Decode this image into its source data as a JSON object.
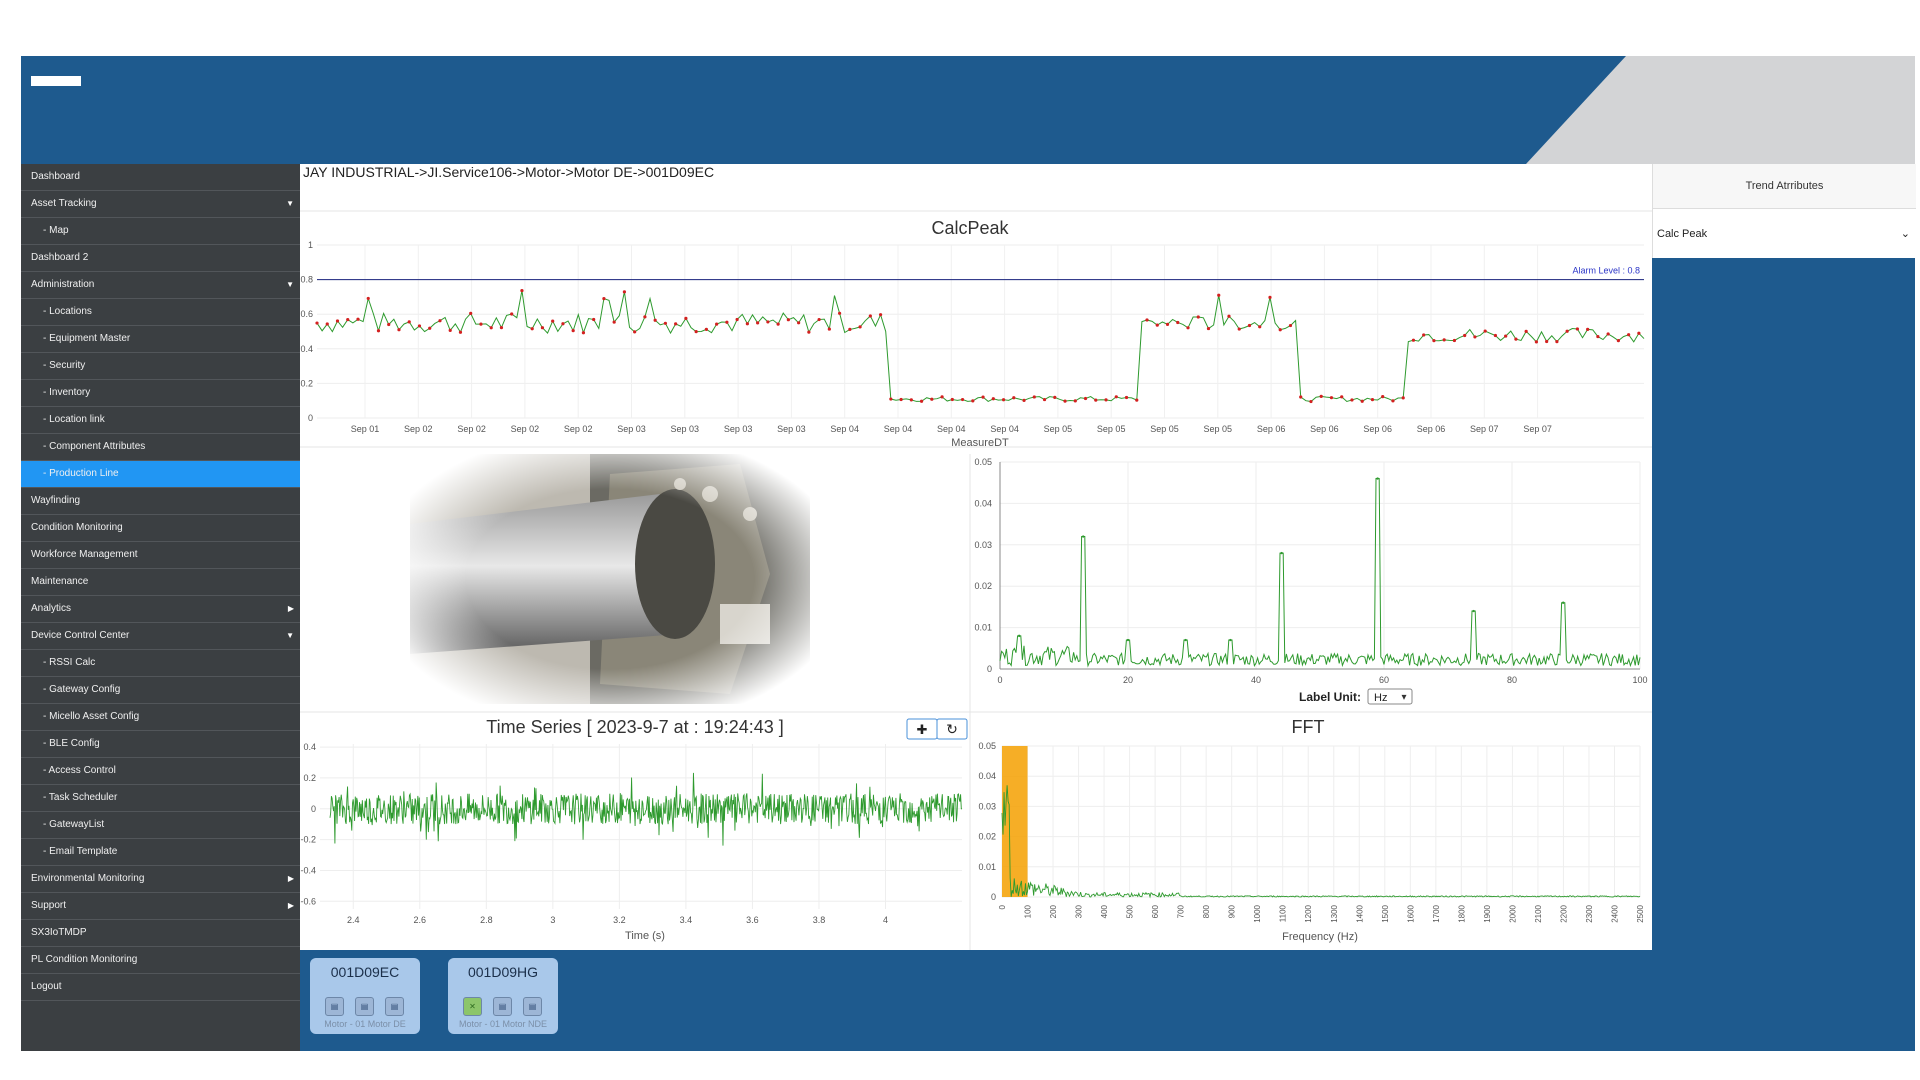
{
  "sidebar": {
    "items": [
      {
        "label": "Dashboard",
        "sub": false,
        "arrow": "",
        "active": false
      },
      {
        "label": "Asset Tracking",
        "sub": false,
        "arrow": "▼",
        "active": false
      },
      {
        "label": "- Map",
        "sub": true,
        "arrow": "",
        "active": false
      },
      {
        "label": "Dashboard 2",
        "sub": false,
        "arrow": "",
        "active": false
      },
      {
        "label": "Administration",
        "sub": false,
        "arrow": "▼",
        "active": false
      },
      {
        "label": "- Locations",
        "sub": true,
        "arrow": "",
        "active": false
      },
      {
        "label": "- Equipment Master",
        "sub": true,
        "arrow": "",
        "active": false
      },
      {
        "label": "- Security",
        "sub": true,
        "arrow": "",
        "active": false
      },
      {
        "label": "- Inventory",
        "sub": true,
        "arrow": "",
        "active": false
      },
      {
        "label": "- Location link",
        "sub": true,
        "arrow": "",
        "active": false
      },
      {
        "label": "- Component Attributes",
        "sub": true,
        "arrow": "",
        "active": false
      },
      {
        "label": "- Production Line",
        "sub": true,
        "arrow": "",
        "active": true
      },
      {
        "label": "Wayfinding",
        "sub": false,
        "arrow": "",
        "active": false
      },
      {
        "label": "Condition Monitoring",
        "sub": false,
        "arrow": "",
        "active": false
      },
      {
        "label": "Workforce Management",
        "sub": false,
        "arrow": "",
        "active": false
      },
      {
        "label": "Maintenance",
        "sub": false,
        "arrow": "",
        "active": false
      },
      {
        "label": "Analytics",
        "sub": false,
        "arrow": "▶",
        "active": false
      },
      {
        "label": "Device Control Center",
        "sub": false,
        "arrow": "▼",
        "active": false
      },
      {
        "label": "- RSSI Calc",
        "sub": true,
        "arrow": "",
        "active": false
      },
      {
        "label": "- Gateway Config",
        "sub": true,
        "arrow": "",
        "active": false
      },
      {
        "label": "- Micello Asset Config",
        "sub": true,
        "arrow": "",
        "active": false
      },
      {
        "label": "- BLE Config",
        "sub": true,
        "arrow": "",
        "active": false
      },
      {
        "label": "- Access Control",
        "sub": true,
        "arrow": "",
        "active": false
      },
      {
        "label": "- Task Scheduler",
        "sub": true,
        "arrow": "",
        "active": false
      },
      {
        "label": "- GatewayList",
        "sub": true,
        "arrow": "",
        "active": false
      },
      {
        "label": "- Email Template",
        "sub": true,
        "arrow": "",
        "active": false
      },
      {
        "label": "Environmental Monitoring",
        "sub": false,
        "arrow": "▶",
        "active": false
      },
      {
        "label": "Support",
        "sub": false,
        "arrow": "▶",
        "active": false
      },
      {
        "label": "SX3IoTMDP",
        "sub": false,
        "arrow": "",
        "active": false
      },
      {
        "label": "PL Condition Monitoring",
        "sub": false,
        "arrow": "",
        "active": false
      },
      {
        "label": "Logout",
        "sub": false,
        "arrow": "",
        "active": false
      }
    ]
  },
  "breadcrumb": "JAY INDUSTRIAL->JI.Service106->Motor->Motor DE->001D09EC",
  "trend": {
    "title": "Trend Atrributes",
    "selected": "Calc Peak"
  },
  "colors": {
    "header": "#1e5a8e",
    "sidebar": "#3b3f42",
    "active": "#2196f3",
    "green": "#2e9a2e",
    "red": "#d42020",
    "orange": "#f5a000"
  },
  "icons": {
    "zoom": "plus-icon",
    "reset": "refresh-icon",
    "sensor": "sensor-icon"
  },
  "chart_data": [
    {
      "type": "line",
      "title": "CalcPeak",
      "xlabel": "MeasureDT",
      "ylabel": "",
      "ylim": [
        0,
        1
      ],
      "yticks": [
        "0",
        "0.2",
        "0.4",
        "0.6",
        "0.8",
        "1"
      ],
      "xticks": [
        "Sep 01",
        "Sep 02",
        "Sep 02",
        "Sep 02",
        "Sep 02",
        "Sep 03",
        "Sep 03",
        "Sep 03",
        "Sep 03",
        "Sep 04",
        "Sep 04",
        "Sep 04",
        "Sep 04",
        "Sep 05",
        "Sep 05",
        "Sep 05",
        "Sep 05",
        "Sep 06",
        "Sep 06",
        "Sep 06",
        "Sep 06",
        "Sep 07",
        "Sep 07"
      ],
      "alarm_label": "Alarm Level : 0.8",
      "alarm_value": 0.8,
      "segments": [
        {
          "from": 0,
          "to": 0.43,
          "level": 0.55,
          "spread": 0.06
        },
        {
          "from": 0.43,
          "to": 0.62,
          "level": 0.11,
          "spread": 0.015
        },
        {
          "from": 0.62,
          "to": 0.74,
          "level": 0.55,
          "spread": 0.04
        },
        {
          "from": 0.74,
          "to": 0.82,
          "level": 0.11,
          "spread": 0.015
        },
        {
          "from": 0.82,
          "to": 1.0,
          "level": 0.48,
          "spread": 0.04
        }
      ]
    },
    {
      "type": "line",
      "title": "",
      "xlabel": "",
      "ylim": [
        0,
        0.05
      ],
      "xlim": [
        0,
        100
      ],
      "yticks": [
        "0",
        "0.01",
        "0.02",
        "0.03",
        "0.04",
        "0.05"
      ],
      "xticks": [
        "0",
        "20",
        "40",
        "60",
        "80",
        "100"
      ],
      "peaks": [
        {
          "x": 3,
          "y": 0.008
        },
        {
          "x": 13,
          "y": 0.032
        },
        {
          "x": 20,
          "y": 0.007
        },
        {
          "x": 29,
          "y": 0.007
        },
        {
          "x": 36,
          "y": 0.007
        },
        {
          "x": 44,
          "y": 0.028
        },
        {
          "x": 59,
          "y": 0.046
        },
        {
          "x": 74,
          "y": 0.014
        },
        {
          "x": 88,
          "y": 0.016
        }
      ]
    },
    {
      "type": "line",
      "title": "Time Series [ 2023-9-7 at : 19:24:43 ]",
      "xlabel": "Time (s)",
      "xlim": [
        2.3,
        4.23
      ],
      "ylim": [
        -0.65,
        0.42
      ],
      "yticks": [
        "-0.6",
        "-0.4",
        "-0.2",
        "0",
        "0.2",
        "0.4"
      ],
      "xticks": [
        "2.4",
        "2.6",
        "2.8",
        "3",
        "3.2",
        "3.4",
        "3.6",
        "3.8",
        "4"
      ],
      "noise_amplitude": 0.1
    },
    {
      "type": "bar",
      "title": "FFT",
      "xlabel": "Frequency (Hz)",
      "ylim": [
        0,
        0.05
      ],
      "yticks": [
        "0",
        "0.01",
        "0.02",
        "0.03",
        "0.04",
        "0.05"
      ],
      "xticks": [
        "0",
        "100",
        "200",
        "300",
        "400",
        "500",
        "600",
        "700",
        "800",
        "900",
        "1000",
        "1100",
        "1200",
        "1300",
        "1400",
        "1500",
        "1600",
        "1700",
        "1800",
        "1900",
        "2000",
        "2100",
        "2200",
        "2300",
        "2400",
        "2500"
      ],
      "highlight_range": [
        0,
        100
      ]
    }
  ],
  "label_unit": {
    "label": "Label Unit:",
    "value": "Hz"
  },
  "devices": [
    {
      "name": "001D09EC",
      "subtitle": "Motor - 01 Motor DE",
      "first_ok": false
    },
    {
      "name": "001D09HG",
      "subtitle": "Motor - 01 Motor NDE",
      "first_ok": true
    }
  ]
}
